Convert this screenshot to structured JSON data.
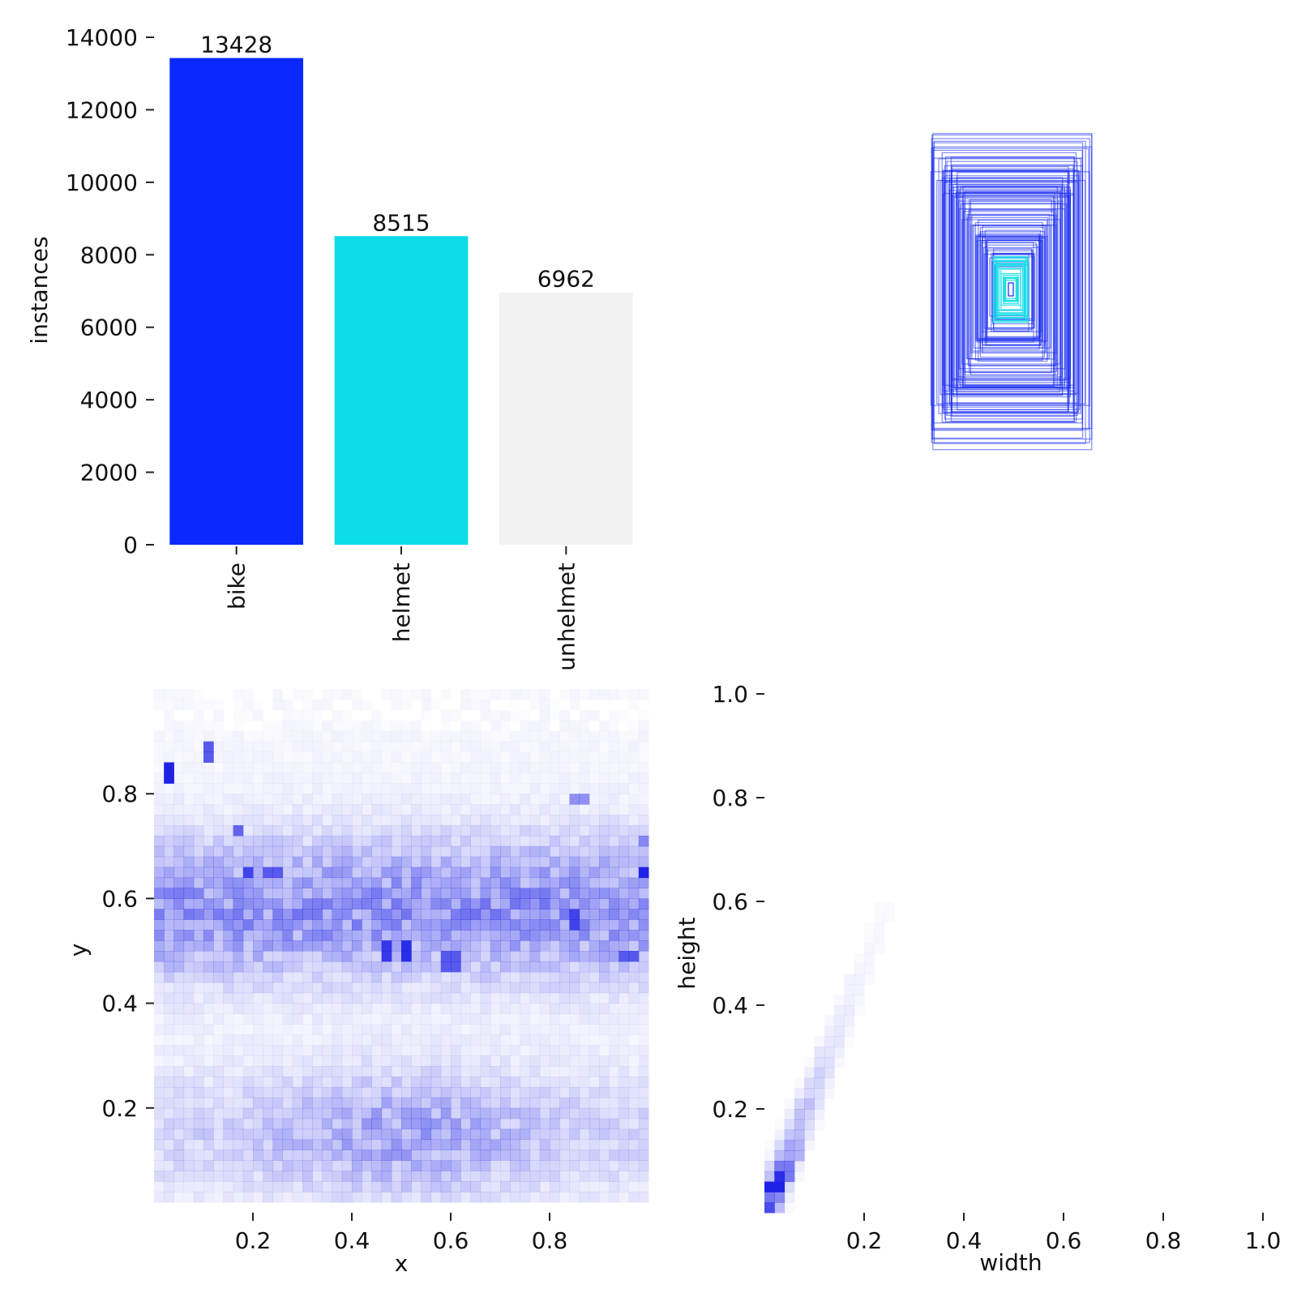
{
  "colors": {
    "bike": "#0a28ff",
    "helmet": "#0cdce8",
    "unhelmet": "#f2f2f2",
    "heat": "#1f22e6",
    "box_outer": "#1a2cf0",
    "box_inner": "#17e0e8",
    "tick": "#222222"
  },
  "chart_data": [
    {
      "id": "class-counts",
      "type": "bar",
      "categories": [
        "bike",
        "helmet",
        "unhelmet"
      ],
      "values": [
        13428,
        8515,
        6962
      ],
      "value_labels": [
        "13428",
        "8515",
        "6962"
      ],
      "bar_colors": [
        "#0a28ff",
        "#0cdce8",
        "#f2f2f2"
      ],
      "ylabel": "instances",
      "ylim": [
        0,
        14000
      ],
      "yticks": [
        0,
        2000,
        4000,
        6000,
        8000,
        10000,
        12000,
        14000
      ],
      "ytick_labels": [
        "0",
        "2000",
        "4000",
        "6000",
        "8000",
        "10000",
        "12000",
        "14000"
      ],
      "grid": false
    },
    {
      "id": "box-overlay",
      "type": "other",
      "description_free": true,
      "grid": false
    },
    {
      "id": "xy-heatmap",
      "type": "heatmap",
      "xlabel": "x",
      "ylabel": "y",
      "xlim": [
        0,
        1
      ],
      "ylim": [
        0,
        1
      ],
      "xticks": [
        0.2,
        0.4,
        0.6,
        0.8
      ],
      "xtick_labels": [
        "0.2",
        "0.4",
        "0.6",
        "0.8"
      ],
      "yticks": [
        0.2,
        0.4,
        0.6,
        0.8
      ],
      "ytick_labels": [
        "0.2",
        "0.4",
        "0.6",
        "0.8"
      ],
      "hotspots": [
        {
          "x": 0.03,
          "y": 0.84,
          "v": 1.0
        },
        {
          "x": 0.11,
          "y": 0.88,
          "v": 0.75
        },
        {
          "x": 0.17,
          "y": 0.73,
          "v": 0.7
        },
        {
          "x": 0.19,
          "y": 0.65,
          "v": 0.85
        },
        {
          "x": 0.24,
          "y": 0.65,
          "v": 0.75
        },
        {
          "x": 0.47,
          "y": 0.5,
          "v": 0.9
        },
        {
          "x": 0.51,
          "y": 0.5,
          "v": 0.95
        },
        {
          "x": 0.6,
          "y": 0.48,
          "v": 0.75
        },
        {
          "x": 0.85,
          "y": 0.56,
          "v": 0.85
        },
        {
          "x": 0.96,
          "y": 0.49,
          "v": 0.75
        },
        {
          "x": 0.99,
          "y": 0.65,
          "v": 1.0
        },
        {
          "x": 0.99,
          "y": 0.71,
          "v": 0.55
        },
        {
          "x": 0.86,
          "y": 0.79,
          "v": 0.5
        }
      ]
    },
    {
      "id": "wh-heatmap",
      "type": "heatmap",
      "xlabel": "width",
      "ylabel": "height",
      "xlim": [
        0,
        1
      ],
      "ylim": [
        0,
        1
      ],
      "xticks": [
        0.2,
        0.4,
        0.6,
        0.8,
        1.0
      ],
      "xtick_labels": [
        "0.2",
        "0.4",
        "0.6",
        "0.8",
        "1.0"
      ],
      "yticks": [
        0.2,
        0.4,
        0.6,
        0.8,
        1.0
      ],
      "ytick_labels": [
        "0.2",
        "0.4",
        "0.6",
        "0.8",
        "1.0"
      ],
      "hotspots": [
        {
          "x": 0.02,
          "y": 0.05,
          "v": 1.0
        },
        {
          "x": 0.03,
          "y": 0.06,
          "v": 0.95
        },
        {
          "x": 0.04,
          "y": 0.08,
          "v": 0.6
        },
        {
          "x": 0.06,
          "y": 0.12,
          "v": 0.35
        },
        {
          "x": 0.08,
          "y": 0.2,
          "v": 0.2
        },
        {
          "x": 0.12,
          "y": 0.3,
          "v": 0.12
        },
        {
          "x": 0.18,
          "y": 0.45,
          "v": 0.06
        }
      ]
    }
  ]
}
